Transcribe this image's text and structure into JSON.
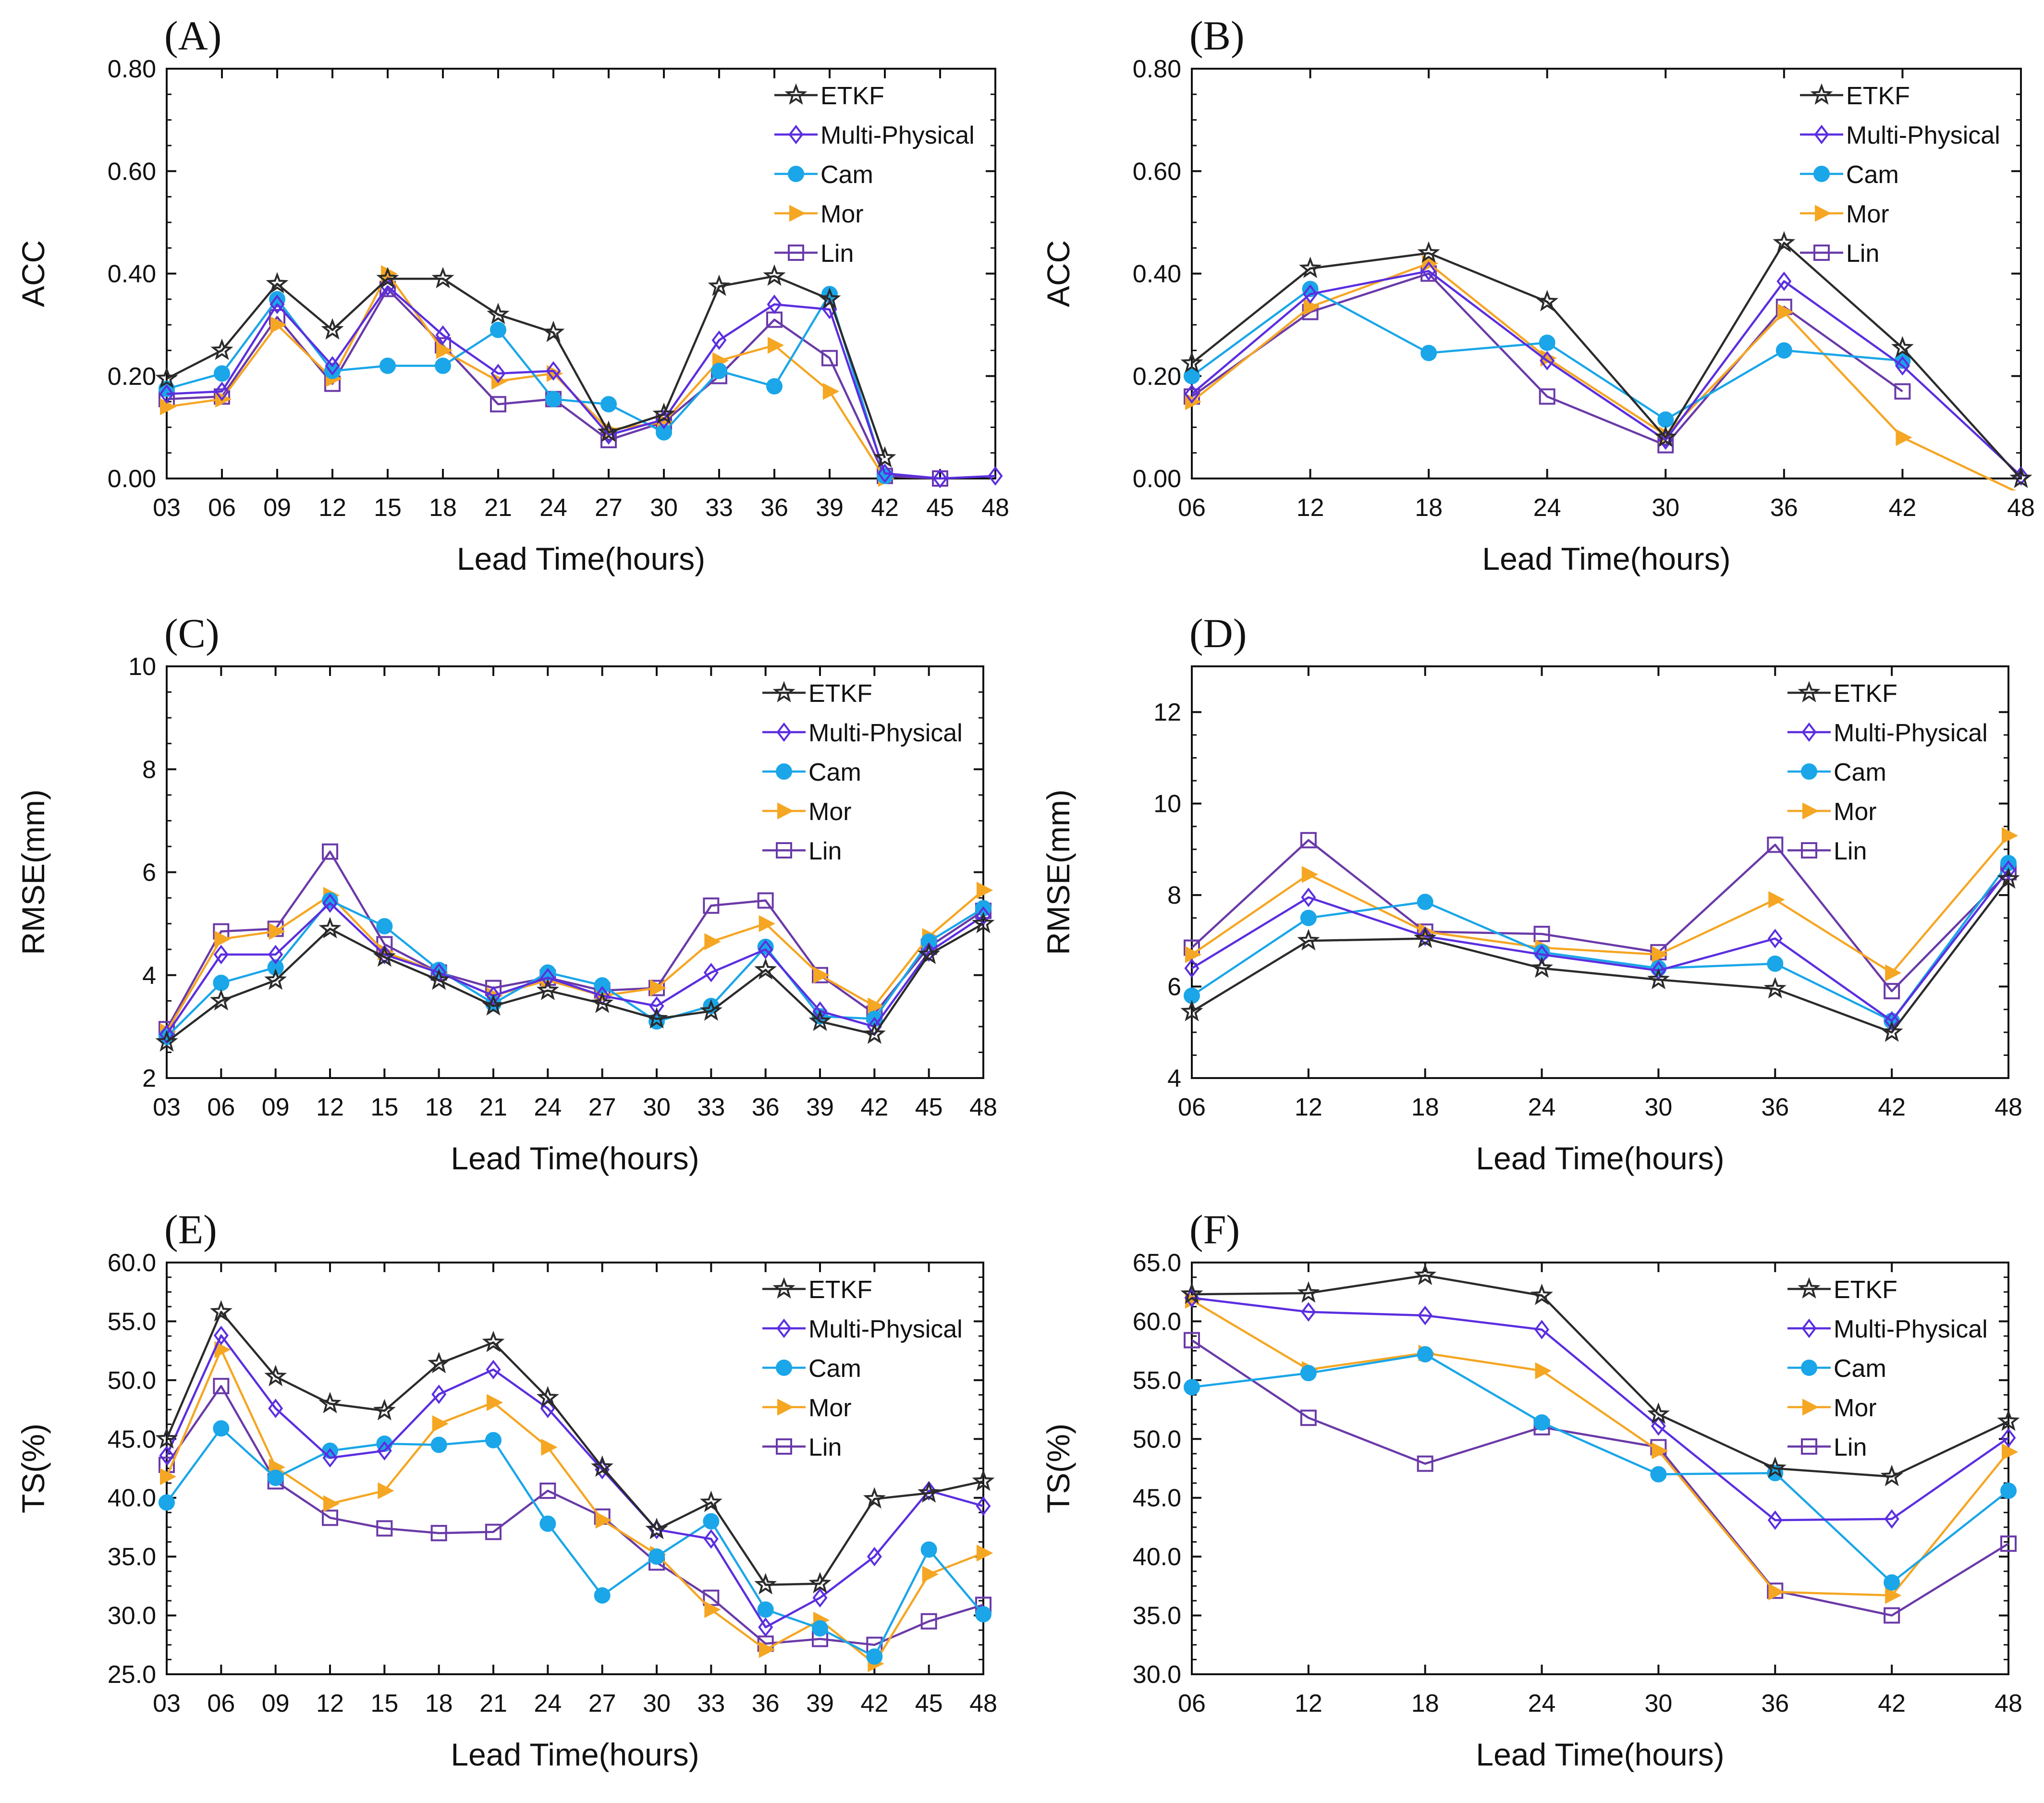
{
  "styles": {
    "ETKF": {
      "color": "#2b2b2b",
      "marker": "star"
    },
    "Multi-Physical": {
      "color": "#5b2ee0",
      "marker": "diamond"
    },
    "Cam": {
      "color": "#1aa6e8",
      "marker": "circle"
    },
    "Mor": {
      "color": "#f5a623",
      "marker": "triangle"
    },
    "Lin": {
      "color": "#6a3aa8",
      "marker": "square"
    }
  },
  "chart_data": [
    {
      "panel": "(A)",
      "type": "line",
      "ylabel": "ACC",
      "xlabel": "Lead Time(hours)",
      "categories": [
        "03",
        "06",
        "09",
        "12",
        "15",
        "18",
        "21",
        "24",
        "27",
        "30",
        "33",
        "36",
        "39",
        "42",
        "45",
        "48"
      ],
      "ylim": [
        0,
        0.8
      ],
      "yticks": [
        0,
        0.2,
        0.4,
        0.6,
        0.8
      ],
      "ytick_labels": [
        "0.00",
        "0.20",
        "0.40",
        "0.60",
        "0.80"
      ],
      "legend": "top-right",
      "series": [
        {
          "name": "ETKF",
          "values": [
            0.195,
            0.25,
            0.38,
            0.29,
            0.39,
            0.39,
            0.32,
            0.285,
            0.09,
            0.125,
            0.375,
            0.395,
            0.35,
            0.04,
            null,
            null
          ]
        },
        {
          "name": "Multi-Physical",
          "values": [
            0.165,
            0.17,
            0.34,
            0.22,
            0.375,
            0.28,
            0.205,
            0.21,
            0.085,
            0.115,
            0.27,
            0.34,
            0.33,
            0.01,
            0.0,
            0.005
          ]
        },
        {
          "name": "Cam",
          "values": [
            0.175,
            0.205,
            0.35,
            0.21,
            0.22,
            0.22,
            0.29,
            0.155,
            0.145,
            0.09,
            0.21,
            0.18,
            0.36,
            0.005,
            null,
            null
          ]
        },
        {
          "name": "Mor",
          "values": [
            0.14,
            0.155,
            0.3,
            0.195,
            0.4,
            0.25,
            0.19,
            0.205,
            0.095,
            0.11,
            0.23,
            0.26,
            0.17,
            0.0,
            null,
            null
          ]
        },
        {
          "name": "Lin",
          "values": [
            0.155,
            0.16,
            0.315,
            0.185,
            0.37,
            0.26,
            0.145,
            0.155,
            0.075,
            0.11,
            0.2,
            0.31,
            0.235,
            0.005,
            0.0,
            null
          ]
        }
      ]
    },
    {
      "panel": "(B)",
      "type": "line",
      "ylabel": "ACC",
      "xlabel": "Lead Time(hours)",
      "categories": [
        "06",
        "12",
        "18",
        "24",
        "30",
        "36",
        "42",
        "48"
      ],
      "ylim": [
        0,
        0.8
      ],
      "yticks": [
        0,
        0.2,
        0.4,
        0.6,
        0.8
      ],
      "ytick_labels": [
        "0.00",
        "0.20",
        "0.40",
        "0.60",
        "0.80"
      ],
      "legend": "top-right",
      "series": [
        {
          "name": "ETKF",
          "values": [
            0.225,
            0.41,
            0.44,
            0.345,
            0.08,
            0.46,
            0.255,
            0.0
          ]
        },
        {
          "name": "Multi-Physical",
          "values": [
            0.165,
            0.36,
            0.405,
            0.23,
            0.075,
            0.385,
            0.22,
            0.005
          ]
        },
        {
          "name": "Cam",
          "values": [
            0.2,
            0.37,
            0.245,
            0.265,
            0.115,
            0.25,
            0.23,
            null
          ]
        },
        {
          "name": "Mor",
          "values": [
            0.15,
            0.335,
            0.42,
            0.235,
            0.085,
            0.325,
            0.08,
            -0.03
          ]
        },
        {
          "name": "Lin",
          "values": [
            0.16,
            0.325,
            0.4,
            0.16,
            0.065,
            0.335,
            0.17,
            null
          ]
        }
      ]
    },
    {
      "panel": "(C)",
      "type": "line",
      "ylabel": "RMSE(mm)",
      "xlabel": "Lead Time(hours)",
      "categories": [
        "03",
        "06",
        "09",
        "12",
        "15",
        "18",
        "21",
        "24",
        "27",
        "30",
        "33",
        "36",
        "39",
        "42",
        "45",
        "48"
      ],
      "ylim": [
        2,
        10
      ],
      "yticks": [
        2,
        4,
        6,
        8,
        10
      ],
      "ytick_labels": [
        "2",
        "4",
        "6",
        "8",
        "10"
      ],
      "legend": "top-right",
      "series": [
        {
          "name": "ETKF",
          "values": [
            2.7,
            3.5,
            3.9,
            4.9,
            4.35,
            3.9,
            3.4,
            3.7,
            3.45,
            3.15,
            3.3,
            4.1,
            3.1,
            2.85,
            4.4,
            5.0
          ]
        },
        {
          "name": "Multi-Physical",
          "values": [
            2.85,
            4.4,
            4.4,
            5.4,
            4.4,
            4.05,
            3.6,
            3.95,
            3.6,
            3.4,
            4.05,
            4.5,
            3.3,
            3.0,
            4.45,
            5.15
          ]
        },
        {
          "name": "Cam",
          "values": [
            2.8,
            3.85,
            4.15,
            5.45,
            4.95,
            4.1,
            3.45,
            4.05,
            3.8,
            3.1,
            3.4,
            4.55,
            3.2,
            3.15,
            4.65,
            5.3
          ]
        },
        {
          "name": "Mor",
          "values": [
            2.9,
            4.7,
            4.85,
            5.55,
            4.45,
            4.05,
            3.6,
            3.9,
            3.6,
            3.75,
            4.65,
            5.0,
            4.0,
            3.4,
            4.75,
            5.65
          ]
        },
        {
          "name": "Lin",
          "values": [
            2.95,
            4.85,
            4.9,
            6.4,
            4.6,
            4.05,
            3.75,
            3.95,
            3.7,
            3.75,
            5.35,
            5.45,
            4.0,
            3.25,
            4.55,
            5.25
          ]
        }
      ]
    },
    {
      "panel": "(D)",
      "type": "line",
      "ylabel": "RMSE(mm)",
      "xlabel": "Lead Time(hours)",
      "categories": [
        "06",
        "12",
        "18",
        "24",
        "30",
        "36",
        "42",
        "48"
      ],
      "ylim": [
        4,
        13
      ],
      "yticks": [
        4,
        6,
        8,
        10,
        12
      ],
      "ytick_labels": [
        "4",
        "6",
        "8",
        "10",
        "12"
      ],
      "legend": "top-right",
      "series": [
        {
          "name": "ETKF",
          "values": [
            5.45,
            7.0,
            7.05,
            6.4,
            6.15,
            5.95,
            5.0,
            8.35
          ]
        },
        {
          "name": "Multi-Physical",
          "values": [
            6.4,
            7.95,
            7.1,
            6.7,
            6.35,
            7.05,
            5.25,
            8.55
          ]
        },
        {
          "name": "Cam",
          "values": [
            5.8,
            7.5,
            7.85,
            6.75,
            6.4,
            6.5,
            5.25,
            8.7
          ]
        },
        {
          "name": "Mor",
          "values": [
            6.7,
            8.45,
            7.2,
            6.85,
            6.7,
            7.9,
            6.3,
            9.3
          ]
        },
        {
          "name": "Lin",
          "values": [
            6.85,
            9.2,
            7.2,
            7.15,
            6.75,
            9.1,
            5.9,
            8.5
          ]
        }
      ]
    },
    {
      "panel": "(E)",
      "type": "line",
      "ylabel": "TS(%)",
      "xlabel": "Lead Time(hours)",
      "categories": [
        "03",
        "06",
        "09",
        "12",
        "15",
        "18",
        "21",
        "24",
        "27",
        "30",
        "33",
        "36",
        "39",
        "42",
        "45",
        "48"
      ],
      "ylim": [
        25,
        60
      ],
      "yticks": [
        25,
        30,
        35,
        40,
        45,
        50,
        55,
        60
      ],
      "ytick_labels": [
        "25.0",
        "30.0",
        "35.0",
        "40.0",
        "45.0",
        "50.0",
        "55.0",
        "60.0"
      ],
      "legend": "top-right",
      "series": [
        {
          "name": "ETKF",
          "values": [
            45.0,
            55.8,
            50.3,
            48.0,
            47.4,
            51.4,
            53.2,
            48.5,
            42.6,
            37.3,
            39.6,
            32.6,
            32.7,
            39.9,
            40.4,
            41.4
          ]
        },
        {
          "name": "Multi-Physical",
          "values": [
            43.6,
            53.8,
            47.6,
            43.4,
            44.0,
            48.8,
            50.9,
            47.6,
            42.4,
            37.3,
            36.5,
            29.0,
            31.5,
            35.0,
            40.6,
            39.3
          ]
        },
        {
          "name": "Cam",
          "values": [
            39.6,
            45.9,
            41.7,
            44.0,
            44.6,
            44.5,
            44.9,
            37.8,
            31.7,
            35.0,
            38.0,
            30.5,
            28.9,
            26.5,
            35.6,
            30.1
          ]
        },
        {
          "name": "Mor",
          "values": [
            41.8,
            52.6,
            42.6,
            39.5,
            40.6,
            46.3,
            48.1,
            44.3,
            38.1,
            35.2,
            30.5,
            27.1,
            29.6,
            25.9,
            33.5,
            35.3
          ]
        },
        {
          "name": "Lin",
          "values": [
            42.8,
            49.5,
            41.4,
            38.3,
            37.4,
            37.0,
            37.1,
            40.6,
            38.4,
            34.5,
            31.5,
            27.6,
            28.0,
            27.5,
            29.5,
            30.9
          ]
        }
      ]
    },
    {
      "panel": "(F)",
      "type": "line",
      "ylabel": "TS(%)",
      "xlabel": "Lead Time(hours)",
      "categories": [
        "06",
        "12",
        "18",
        "24",
        "30",
        "36",
        "42",
        "48"
      ],
      "ylim": [
        30,
        65
      ],
      "yticks": [
        30,
        35,
        40,
        45,
        50,
        55,
        60,
        65
      ],
      "ytick_labels": [
        "30.0",
        "35.0",
        "40.0",
        "45.0",
        "50.0",
        "55.0",
        "60.0",
        "65.0"
      ],
      "legend": "top-right",
      "series": [
        {
          "name": "ETKF",
          "values": [
            62.3,
            62.4,
            63.9,
            62.2,
            52.1,
            47.5,
            46.8,
            51.5
          ]
        },
        {
          "name": "Multi-Physical",
          "values": [
            62.0,
            60.8,
            60.5,
            59.3,
            51.1,
            43.1,
            43.2,
            50.1
          ]
        },
        {
          "name": "Cam",
          "values": [
            54.4,
            55.6,
            57.2,
            51.4,
            47.0,
            47.1,
            37.8,
            45.6
          ]
        },
        {
          "name": "Mor",
          "values": [
            61.8,
            55.9,
            57.3,
            55.8,
            49.0,
            37.0,
            36.7,
            48.9
          ]
        },
        {
          "name": "Lin",
          "values": [
            58.4,
            51.8,
            47.9,
            51.0,
            49.3,
            37.1,
            35.0,
            41.1
          ]
        }
      ]
    }
  ]
}
